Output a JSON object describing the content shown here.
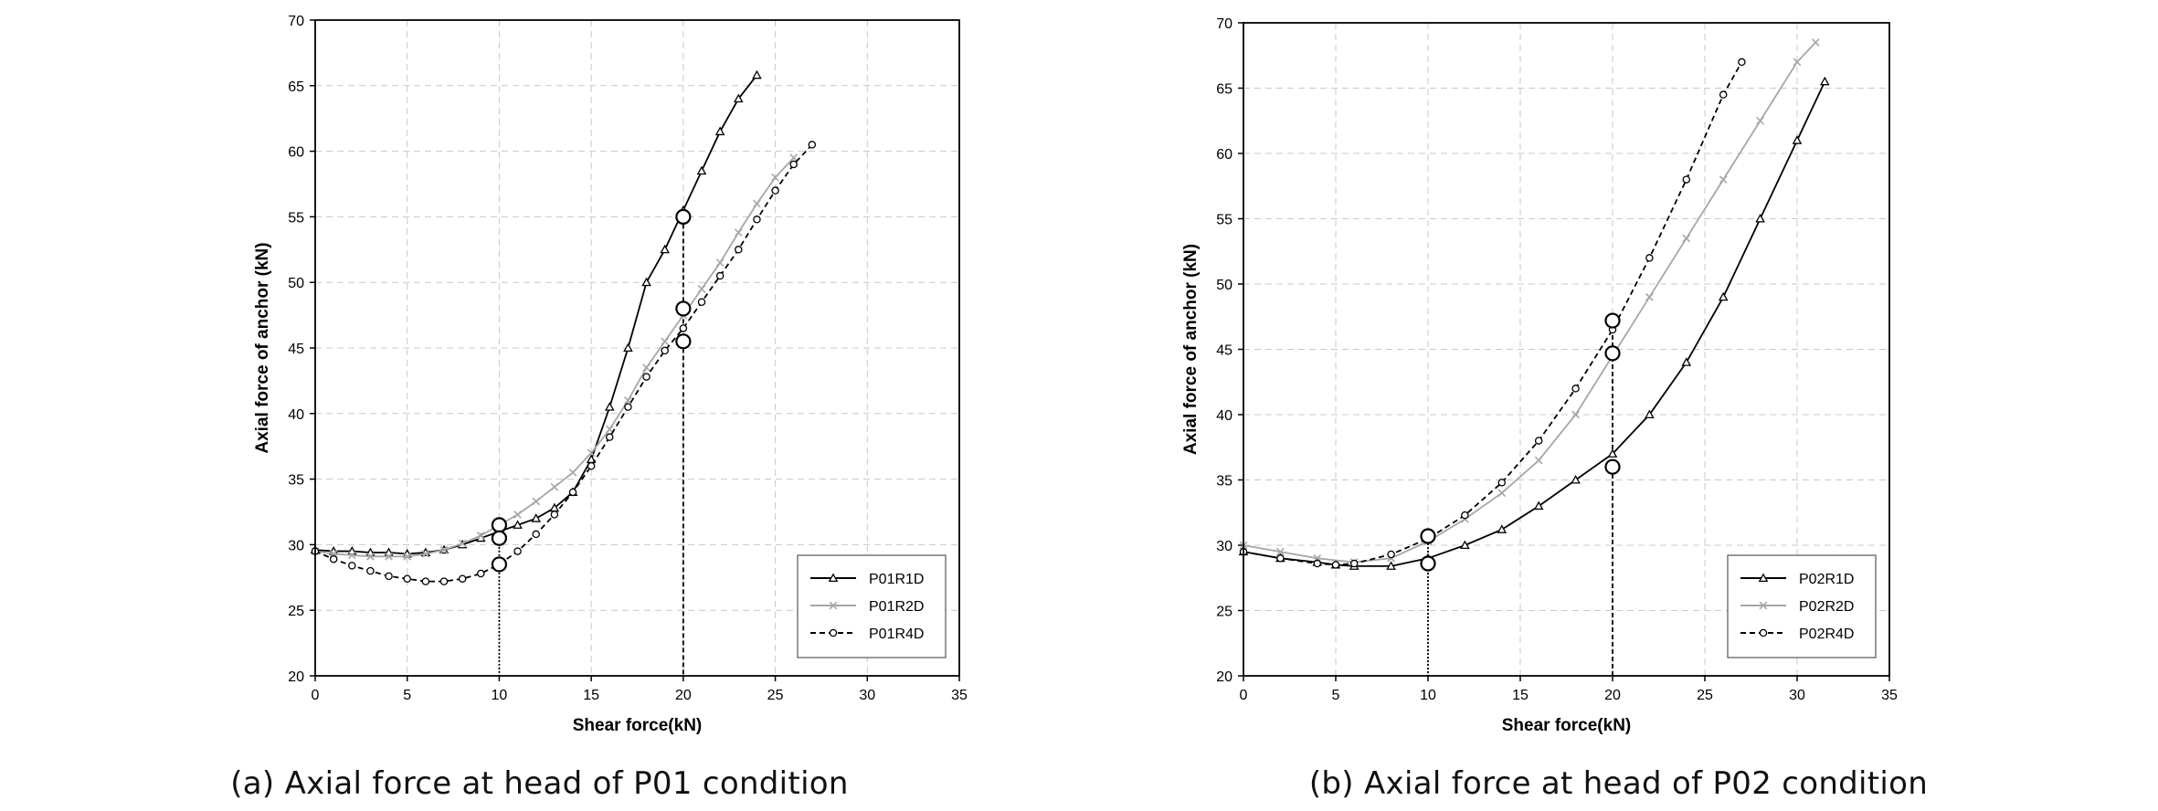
{
  "chart_data": [
    {
      "type": "line",
      "caption": "(a) Axial force at head of P01 condition",
      "xlabel": "Shear force(kN)",
      "ylabel": "Axial force of anchor (kN)",
      "xlim": [
        0,
        35
      ],
      "ylim": [
        20,
        70
      ],
      "xticks": [
        0,
        5,
        10,
        15,
        20,
        25,
        30,
        35
      ],
      "yticks": [
        20,
        25,
        30,
        35,
        40,
        45,
        50,
        55,
        60,
        65,
        70
      ],
      "grid": true,
      "legend_position": "bottom-right",
      "series": [
        {
          "name": "P01R1D",
          "color": "#000000",
          "dash": "solid",
          "marker": "triangle",
          "x": [
            0,
            1,
            2,
            3,
            4,
            5,
            6,
            7,
            8,
            9,
            10,
            11,
            12,
            13,
            14,
            15,
            16,
            17,
            18,
            19,
            20,
            21,
            22,
            23,
            24
          ],
          "y": [
            29.6,
            29.5,
            29.5,
            29.4,
            29.4,
            29.3,
            29.4,
            29.6,
            30.0,
            30.5,
            31.0,
            31.5,
            32.0,
            32.8,
            34.0,
            36.5,
            40.5,
            45.0,
            50.0,
            52.5,
            55.5,
            58.5,
            61.5,
            64.0,
            65.8
          ]
        },
        {
          "name": "P01R2D",
          "color": "#a6a6a6",
          "dash": "solid",
          "marker": "x",
          "x": [
            0,
            1,
            2,
            3,
            4,
            5,
            6,
            7,
            8,
            9,
            10,
            11,
            12,
            13,
            14,
            15,
            16,
            17,
            18,
            19,
            20,
            21,
            22,
            23,
            24,
            25,
            26
          ],
          "y": [
            29.5,
            29.3,
            29.2,
            29.1,
            29.1,
            29.1,
            29.3,
            29.6,
            30.1,
            30.7,
            31.5,
            32.3,
            33.3,
            34.4,
            35.5,
            37.0,
            38.8,
            41.0,
            43.5,
            45.5,
            47.5,
            49.5,
            51.5,
            53.8,
            56.0,
            58.0,
            59.5
          ]
        },
        {
          "name": "P01R4D",
          "color": "#000000",
          "dash": "dashed",
          "marker": "circle",
          "x": [
            0,
            1,
            2,
            3,
            4,
            5,
            6,
            7,
            8,
            9,
            10,
            11,
            12,
            13,
            14,
            15,
            16,
            17,
            18,
            19,
            20,
            21,
            22,
            23,
            24,
            25,
            26,
            27
          ],
          "y": [
            29.5,
            28.9,
            28.4,
            28.0,
            27.6,
            27.4,
            27.2,
            27.2,
            27.4,
            27.8,
            28.5,
            29.5,
            30.8,
            32.3,
            34.0,
            36.0,
            38.2,
            40.5,
            42.8,
            44.8,
            46.5,
            48.5,
            50.5,
            52.5,
            54.8,
            57.0,
            59.0,
            60.5
          ]
        }
      ],
      "highlighted_points": [
        {
          "x": 10,
          "y": 31.5
        },
        {
          "x": 10,
          "y": 30.5
        },
        {
          "x": 10,
          "y": 28.5
        },
        {
          "x": 20,
          "y": 55.0
        },
        {
          "x": 20,
          "y": 48.0
        },
        {
          "x": 20,
          "y": 45.5
        }
      ],
      "reference_lines_x": [
        10,
        20
      ]
    },
    {
      "type": "line",
      "caption": "(b) Axial force at head of P02 condition",
      "xlabel": "Shear force(kN)",
      "ylabel": "Axial force of anchor (kN)",
      "xlim": [
        0,
        35
      ],
      "ylim": [
        20,
        70
      ],
      "xticks": [
        0,
        5,
        10,
        15,
        20,
        25,
        30,
        35
      ],
      "yticks": [
        20,
        25,
        30,
        35,
        40,
        45,
        50,
        55,
        60,
        65,
        70
      ],
      "grid": true,
      "legend_position": "bottom-right",
      "series": [
        {
          "name": "P02R1D",
          "color": "#000000",
          "dash": "solid",
          "marker": "triangle",
          "x": [
            0,
            2,
            4,
            5,
            6,
            8,
            10,
            12,
            14,
            16,
            18,
            20,
            22,
            24,
            26,
            28,
            30,
            31.5
          ],
          "y": [
            29.5,
            29.0,
            28.7,
            28.5,
            28.4,
            28.4,
            29.0,
            30.0,
            31.2,
            33.0,
            35.0,
            37.0,
            40.0,
            44.0,
            49.0,
            55.0,
            61.0,
            65.5
          ]
        },
        {
          "name": "P02R2D",
          "color": "#a6a6a6",
          "dash": "solid",
          "marker": "x",
          "x": [
            0,
            2,
            4,
            6,
            8,
            10,
            12,
            14,
            16,
            18,
            20,
            22,
            24,
            26,
            28,
            30,
            31
          ],
          "y": [
            30.0,
            29.5,
            29.0,
            28.7,
            29.0,
            30.3,
            32.0,
            34.0,
            36.5,
            40.0,
            44.5,
            49.0,
            53.5,
            58.0,
            62.5,
            67.0,
            68.5
          ]
        },
        {
          "name": "P02R4D",
          "color": "#000000",
          "dash": "dashed",
          "marker": "circle",
          "x": [
            0,
            2,
            4,
            5,
            6,
            8,
            10,
            12,
            14,
            16,
            18,
            20,
            22,
            24,
            26,
            27
          ],
          "y": [
            29.5,
            29.0,
            28.6,
            28.5,
            28.6,
            29.3,
            30.5,
            32.3,
            34.8,
            38.0,
            42.0,
            46.5,
            52.0,
            58.0,
            64.5,
            67.0
          ]
        }
      ],
      "highlighted_points": [
        {
          "x": 10,
          "y": 30.7
        },
        {
          "x": 10,
          "y": 28.6
        },
        {
          "x": 20,
          "y": 47.2
        },
        {
          "x": 20,
          "y": 44.7
        },
        {
          "x": 20,
          "y": 36.0
        }
      ],
      "reference_lines_x": [
        10,
        20
      ]
    }
  ]
}
